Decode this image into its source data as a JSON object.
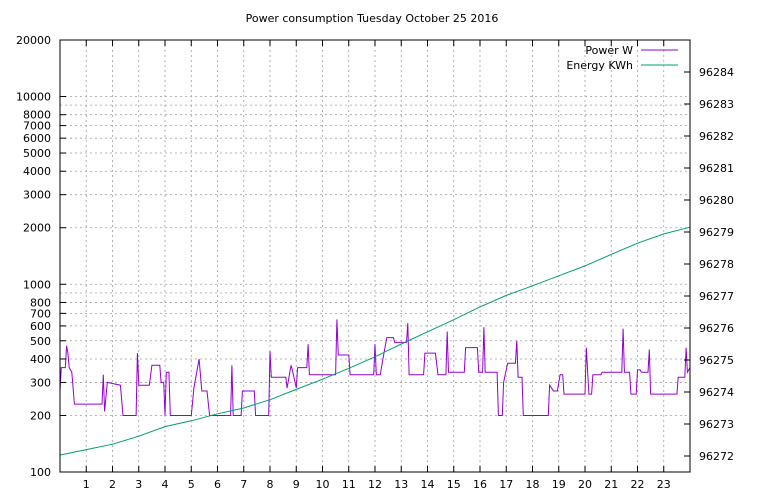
{
  "chart_data": {
    "type": "line",
    "title": "Power consumption Tuesday October 25 2016",
    "x_ticks": [
      "1",
      "2",
      "3",
      "4",
      "5",
      "6",
      "7",
      "8",
      "9",
      "10",
      "11",
      "12",
      "13",
      "14",
      "15",
      "16",
      "17",
      "18",
      "19",
      "20",
      "21",
      "22",
      "23"
    ],
    "x_range": [
      0,
      24
    ],
    "y_left": {
      "scale": "log",
      "range": [
        100,
        20000
      ],
      "ticks": [
        "100",
        "200",
        "300",
        "400",
        "500",
        "600",
        "700",
        "800",
        "1000",
        "2000",
        "3000",
        "4000",
        "5000",
        "6000",
        "7000",
        "8000",
        "10000",
        "20000"
      ]
    },
    "y_right": {
      "range": [
        96271.5,
        96285
      ],
      "ticks": [
        "96272",
        "96273",
        "96274",
        "96275",
        "96276",
        "96277",
        "96278",
        "96279",
        "96280",
        "96281",
        "96282",
        "96283",
        "96284"
      ]
    },
    "grid": true,
    "legend_position": "top-right",
    "series": [
      {
        "name": "Power W",
        "axis": "left",
        "color": "#9400d3",
        "points": [
          [
            0.0,
            270
          ],
          [
            0.05,
            360
          ],
          [
            0.2,
            360
          ],
          [
            0.25,
            470
          ],
          [
            0.3,
            430
          ],
          [
            0.35,
            360
          ],
          [
            0.45,
            340
          ],
          [
            0.55,
            230
          ],
          [
            1.6,
            230
          ],
          [
            1.65,
            330
          ],
          [
            1.7,
            210
          ],
          [
            1.8,
            300
          ],
          [
            2.3,
            290
          ],
          [
            2.4,
            200
          ],
          [
            2.9,
            200
          ],
          [
            2.95,
            430
          ],
          [
            3.0,
            290
          ],
          [
            3.4,
            290
          ],
          [
            3.5,
            370
          ],
          [
            3.8,
            370
          ],
          [
            3.85,
            300
          ],
          [
            3.95,
            300
          ],
          [
            4.0,
            200
          ],
          [
            4.05,
            340
          ],
          [
            4.15,
            340
          ],
          [
            4.2,
            200
          ],
          [
            5.0,
            200
          ],
          [
            5.1,
            280
          ],
          [
            5.3,
            400
          ],
          [
            5.4,
            270
          ],
          [
            5.6,
            270
          ],
          [
            5.7,
            200
          ],
          [
            6.5,
            200
          ],
          [
            6.55,
            370
          ],
          [
            6.6,
            200
          ],
          [
            6.9,
            200
          ],
          [
            6.95,
            270
          ],
          [
            7.4,
            270
          ],
          [
            7.45,
            200
          ],
          [
            7.95,
            200
          ],
          [
            8.0,
            440
          ],
          [
            8.05,
            320
          ],
          [
            8.6,
            320
          ],
          [
            8.65,
            280
          ],
          [
            8.8,
            370
          ],
          [
            8.85,
            350
          ],
          [
            9.0,
            280
          ],
          [
            9.05,
            360
          ],
          [
            9.4,
            360
          ],
          [
            9.45,
            480
          ],
          [
            9.5,
            330
          ],
          [
            10.5,
            330
          ],
          [
            10.55,
            650
          ],
          [
            10.6,
            420
          ],
          [
            11.0,
            420
          ],
          [
            11.05,
            330
          ],
          [
            11.95,
            330
          ],
          [
            12.0,
            480
          ],
          [
            12.05,
            330
          ],
          [
            12.2,
            330
          ],
          [
            12.3,
            400
          ],
          [
            12.45,
            520
          ],
          [
            12.7,
            520
          ],
          [
            12.75,
            490
          ],
          [
            13.2,
            490
          ],
          [
            13.25,
            620
          ],
          [
            13.3,
            330
          ],
          [
            13.85,
            330
          ],
          [
            13.9,
            430
          ],
          [
            14.3,
            430
          ],
          [
            14.4,
            330
          ],
          [
            14.7,
            330
          ],
          [
            14.75,
            560
          ],
          [
            14.8,
            340
          ],
          [
            15.4,
            340
          ],
          [
            15.45,
            460
          ],
          [
            15.9,
            460
          ],
          [
            15.95,
            340
          ],
          [
            16.1,
            340
          ],
          [
            16.15,
            590
          ],
          [
            16.2,
            340
          ],
          [
            16.65,
            340
          ],
          [
            16.7,
            200
          ],
          [
            16.85,
            200
          ],
          [
            16.9,
            300
          ],
          [
            17.05,
            380
          ],
          [
            17.35,
            380
          ],
          [
            17.4,
            500
          ],
          [
            17.45,
            320
          ],
          [
            17.6,
            320
          ],
          [
            17.65,
            200
          ],
          [
            18.6,
            200
          ],
          [
            18.65,
            290
          ],
          [
            18.8,
            270
          ],
          [
            18.95,
            270
          ],
          [
            19.05,
            330
          ],
          [
            19.15,
            330
          ],
          [
            19.2,
            260
          ],
          [
            20.0,
            260
          ],
          [
            20.05,
            460
          ],
          [
            20.15,
            260
          ],
          [
            20.25,
            260
          ],
          [
            20.3,
            330
          ],
          [
            20.6,
            330
          ],
          [
            20.65,
            340
          ],
          [
            21.4,
            340
          ],
          [
            21.45,
            580
          ],
          [
            21.5,
            340
          ],
          [
            21.7,
            340
          ],
          [
            21.75,
            260
          ],
          [
            21.95,
            260
          ],
          [
            22.0,
            350
          ],
          [
            22.1,
            350
          ],
          [
            22.15,
            340
          ],
          [
            22.4,
            340
          ],
          [
            22.45,
            450
          ],
          [
            22.5,
            260
          ],
          [
            23.5,
            260
          ],
          [
            23.55,
            320
          ],
          [
            23.8,
            320
          ],
          [
            23.85,
            460
          ],
          [
            23.9,
            340
          ],
          [
            24.0,
            360
          ]
        ]
      },
      {
        "name": "Energy KWh",
        "axis": "right",
        "color": "#009e73",
        "points": [
          [
            0,
            96272.03
          ],
          [
            1,
            96272.2
          ],
          [
            2,
            96272.37
          ],
          [
            3,
            96272.62
          ],
          [
            4,
            96272.92
          ],
          [
            5,
            96273.1
          ],
          [
            6,
            96273.32
          ],
          [
            7,
            96273.5
          ],
          [
            8,
            96273.76
          ],
          [
            9,
            96274.08
          ],
          [
            10,
            96274.4
          ],
          [
            11,
            96274.74
          ],
          [
            12,
            96275.1
          ],
          [
            13,
            96275.5
          ],
          [
            14,
            96275.88
          ],
          [
            15,
            96276.26
          ],
          [
            16,
            96276.66
          ],
          [
            17,
            96277.02
          ],
          [
            18,
            96277.32
          ],
          [
            19,
            96277.63
          ],
          [
            20,
            96277.94
          ],
          [
            21,
            96278.3
          ],
          [
            22,
            96278.65
          ],
          [
            23,
            96278.94
          ],
          [
            24,
            96279.15
          ]
        ]
      }
    ]
  }
}
